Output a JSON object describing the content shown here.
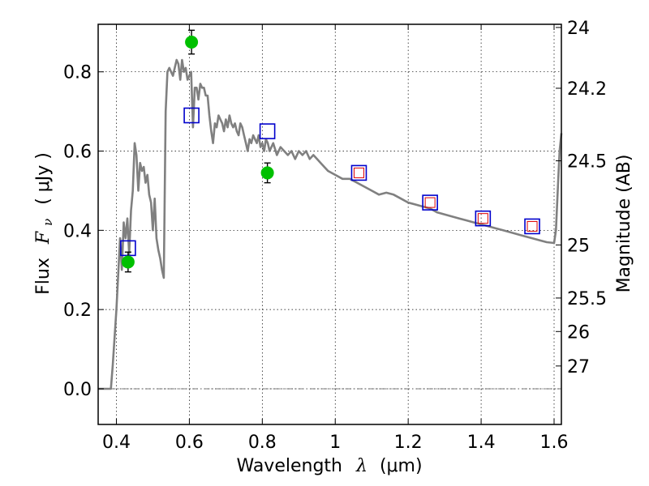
{
  "chart_data": {
    "type": "line",
    "xlabel": "Wavelength",
    "xlabel_symbol": "λ",
    "xlabel_unit": "(μm)",
    "ylabel": "Flux",
    "ylabel_symbol": "F",
    "ylabel_subscript": "ν",
    "ylabel_unit": "( μJy )",
    "y2label": "Magnitude (AB)",
    "xlim": [
      0.35,
      1.62
    ],
    "ylim": [
      -0.09,
      0.92
    ],
    "grid": true,
    "xticks": [
      {
        "v": 0.4,
        "label": "0.4"
      },
      {
        "v": 0.6,
        "label": "0.6"
      },
      {
        "v": 0.8,
        "label": "0.8"
      },
      {
        "v": 1.0,
        "label": "1"
      },
      {
        "v": 1.2,
        "label": "1.2"
      },
      {
        "v": 1.4,
        "label": "1.4"
      },
      {
        "v": 1.6,
        "label": "1.6"
      }
    ],
    "yticks": [
      {
        "v": 0.0,
        "label": "0.0"
      },
      {
        "v": 0.2,
        "label": "0.2"
      },
      {
        "v": 0.4,
        "label": "0.4"
      },
      {
        "v": 0.6,
        "label": "0.6"
      },
      {
        "v": 0.8,
        "label": "0.8"
      }
    ],
    "y2ticks": [
      {
        "mag": 24,
        "label": "24"
      },
      {
        "mag": 24.2,
        "label": "24.2"
      },
      {
        "mag": 24.5,
        "label": "24.5"
      },
      {
        "mag": 25,
        "label": "25"
      },
      {
        "mag": 25.5,
        "label": "25.5"
      },
      {
        "mag": 26,
        "label": "26"
      },
      {
        "mag": 27,
        "label": "27"
      }
    ],
    "colors": {
      "model": "#808080",
      "observed": "#00c000",
      "model_photometry": "#0000cc",
      "model_photometry_inner": "#dd0000",
      "zero_line": "#555555"
    },
    "model_spectrum": [
      [
        0.35,
        0.0
      ],
      [
        0.385,
        0.0
      ],
      [
        0.39,
        0.06
      ],
      [
        0.4,
        0.2
      ],
      [
        0.41,
        0.38
      ],
      [
        0.415,
        0.3
      ],
      [
        0.42,
        0.42
      ],
      [
        0.425,
        0.38
      ],
      [
        0.43,
        0.43
      ],
      [
        0.435,
        0.34
      ],
      [
        0.44,
        0.45
      ],
      [
        0.445,
        0.5
      ],
      [
        0.45,
        0.62
      ],
      [
        0.455,
        0.59
      ],
      [
        0.46,
        0.5
      ],
      [
        0.465,
        0.57
      ],
      [
        0.47,
        0.55
      ],
      [
        0.475,
        0.56
      ],
      [
        0.48,
        0.52
      ],
      [
        0.485,
        0.54
      ],
      [
        0.49,
        0.49
      ],
      [
        0.495,
        0.47
      ],
      [
        0.5,
        0.4
      ],
      [
        0.505,
        0.48
      ],
      [
        0.51,
        0.38
      ],
      [
        0.515,
        0.35
      ],
      [
        0.52,
        0.33
      ],
      [
        0.525,
        0.3
      ],
      [
        0.53,
        0.28
      ],
      [
        0.535,
        0.7
      ],
      [
        0.54,
        0.8
      ],
      [
        0.545,
        0.81
      ],
      [
        0.55,
        0.8
      ],
      [
        0.555,
        0.79
      ],
      [
        0.56,
        0.81
      ],
      [
        0.565,
        0.83
      ],
      [
        0.57,
        0.82
      ],
      [
        0.575,
        0.78
      ],
      [
        0.58,
        0.83
      ],
      [
        0.585,
        0.8
      ],
      [
        0.59,
        0.81
      ],
      [
        0.595,
        0.78
      ],
      [
        0.6,
        0.79
      ],
      [
        0.605,
        0.8
      ],
      [
        0.61,
        0.66
      ],
      [
        0.615,
        0.76
      ],
      [
        0.62,
        0.76
      ],
      [
        0.625,
        0.73
      ],
      [
        0.63,
        0.77
      ],
      [
        0.635,
        0.76
      ],
      [
        0.64,
        0.76
      ],
      [
        0.645,
        0.74
      ],
      [
        0.65,
        0.74
      ],
      [
        0.655,
        0.69
      ],
      [
        0.66,
        0.65
      ],
      [
        0.665,
        0.62
      ],
      [
        0.67,
        0.67
      ],
      [
        0.675,
        0.66
      ],
      [
        0.68,
        0.69
      ],
      [
        0.685,
        0.68
      ],
      [
        0.69,
        0.67
      ],
      [
        0.695,
        0.65
      ],
      [
        0.7,
        0.68
      ],
      [
        0.705,
        0.66
      ],
      [
        0.71,
        0.69
      ],
      [
        0.715,
        0.67
      ],
      [
        0.72,
        0.66
      ],
      [
        0.725,
        0.67
      ],
      [
        0.73,
        0.65
      ],
      [
        0.735,
        0.64
      ],
      [
        0.74,
        0.67
      ],
      [
        0.745,
        0.66
      ],
      [
        0.75,
        0.64
      ],
      [
        0.755,
        0.62
      ],
      [
        0.76,
        0.6
      ],
      [
        0.765,
        0.63
      ],
      [
        0.77,
        0.62
      ],
      [
        0.775,
        0.64
      ],
      [
        0.78,
        0.63
      ],
      [
        0.785,
        0.62
      ],
      [
        0.79,
        0.64
      ],
      [
        0.795,
        0.61
      ],
      [
        0.8,
        0.62
      ],
      [
        0.805,
        0.6
      ],
      [
        0.81,
        0.63
      ],
      [
        0.815,
        0.62
      ],
      [
        0.82,
        0.6
      ],
      [
        0.83,
        0.62
      ],
      [
        0.84,
        0.59
      ],
      [
        0.85,
        0.61
      ],
      [
        0.86,
        0.6
      ],
      [
        0.87,
        0.59
      ],
      [
        0.88,
        0.6
      ],
      [
        0.89,
        0.58
      ],
      [
        0.9,
        0.6
      ],
      [
        0.91,
        0.59
      ],
      [
        0.92,
        0.6
      ],
      [
        0.93,
        0.58
      ],
      [
        0.94,
        0.59
      ],
      [
        0.95,
        0.58
      ],
      [
        0.96,
        0.57
      ],
      [
        0.97,
        0.56
      ],
      [
        0.98,
        0.55
      ],
      [
        1.0,
        0.54
      ],
      [
        1.02,
        0.53
      ],
      [
        1.04,
        0.53
      ],
      [
        1.06,
        0.52
      ],
      [
        1.08,
        0.51
      ],
      [
        1.1,
        0.5
      ],
      [
        1.12,
        0.49
      ],
      [
        1.14,
        0.495
      ],
      [
        1.16,
        0.49
      ],
      [
        1.18,
        0.48
      ],
      [
        1.2,
        0.47
      ],
      [
        1.22,
        0.465
      ],
      [
        1.24,
        0.46
      ],
      [
        1.26,
        0.455
      ],
      [
        1.28,
        0.445
      ],
      [
        1.3,
        0.44
      ],
      [
        1.32,
        0.435
      ],
      [
        1.34,
        0.43
      ],
      [
        1.36,
        0.425
      ],
      [
        1.38,
        0.42
      ],
      [
        1.4,
        0.415
      ],
      [
        1.42,
        0.41
      ],
      [
        1.44,
        0.405
      ],
      [
        1.46,
        0.4
      ],
      [
        1.48,
        0.395
      ],
      [
        1.5,
        0.39
      ],
      [
        1.52,
        0.385
      ],
      [
        1.54,
        0.38
      ],
      [
        1.56,
        0.375
      ],
      [
        1.58,
        0.37
      ],
      [
        1.6,
        0.368
      ],
      [
        1.605,
        0.4
      ],
      [
        1.61,
        0.5
      ],
      [
        1.615,
        0.6
      ],
      [
        1.62,
        0.645
      ]
    ],
    "observed_points": [
      {
        "x": 0.432,
        "y": 0.32,
        "err": 0.025
      },
      {
        "x": 0.606,
        "y": 0.875,
        "err": 0.03
      },
      {
        "x": 0.814,
        "y": 0.545,
        "err": 0.025
      }
    ],
    "model_photometry": [
      {
        "x": 0.432,
        "y": 0.355,
        "inner": false
      },
      {
        "x": 0.606,
        "y": 0.69,
        "inner": false
      },
      {
        "x": 0.814,
        "y": 0.65,
        "inner": false
      },
      {
        "x": 1.065,
        "y": 0.545,
        "inner": true
      },
      {
        "x": 1.26,
        "y": 0.47,
        "inner": true
      },
      {
        "x": 1.405,
        "y": 0.43,
        "inner": true
      },
      {
        "x": 1.54,
        "y": 0.41,
        "inner": true
      }
    ]
  }
}
